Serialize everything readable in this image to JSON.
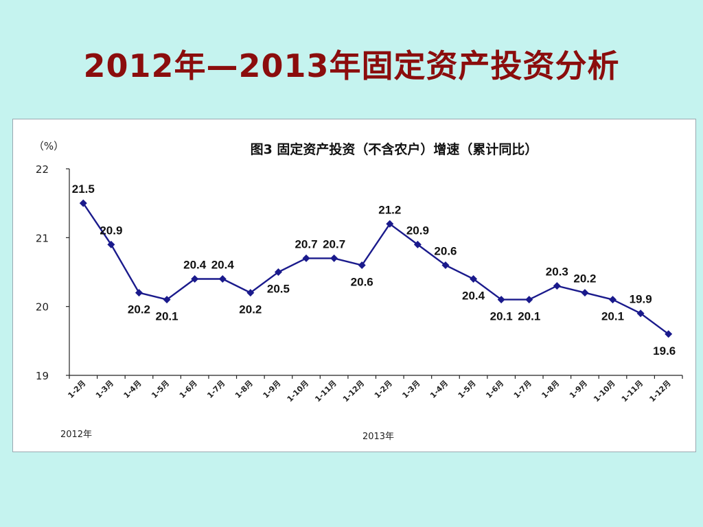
{
  "slide": {
    "title": "2012年—2013年固定资产投资分析"
  },
  "chart_data": {
    "type": "line",
    "title": "图3  固定资产投资（不含农户）增速（累计同比）",
    "unit": "（%）",
    "ylim": [
      19,
      22
    ],
    "yticks": [
      "22",
      "21",
      "20",
      "19"
    ],
    "grid": false,
    "categories": [
      "1-2月",
      "1-3月",
      "1-4月",
      "1-5月",
      "1-6月",
      "1-7月",
      "1-8月",
      "1-9月",
      "1-10月",
      "1-11月",
      "1-12月",
      "1-2月",
      "1-3月",
      "1-4月",
      "1-5月",
      "1-6月",
      "1-7月",
      "1-8月",
      "1-9月",
      "1-10月",
      "1-11月",
      "1-12月"
    ],
    "values": [
      21.5,
      20.9,
      20.2,
      20.1,
      20.4,
      20.4,
      20.2,
      20.5,
      20.7,
      20.7,
      20.6,
      21.2,
      20.9,
      20.6,
      20.4,
      20.1,
      20.1,
      20.3,
      20.2,
      20.1,
      19.9,
      19.6
    ],
    "data_labels": [
      "21.5",
      "20.9",
      "20.2",
      "20.1",
      "20.4",
      "20.4",
      "20.2",
      "20.5",
      "20.7",
      "20.7",
      "20.6",
      "21.2",
      "20.9",
      "20.6",
      "20.4",
      "20.1",
      "20.1",
      "20.3",
      "20.2",
      "20.1",
      "19.9",
      "19.6"
    ],
    "year_labels": [
      "2012年",
      "2013年"
    ],
    "line_color": "#1a1a8c"
  }
}
